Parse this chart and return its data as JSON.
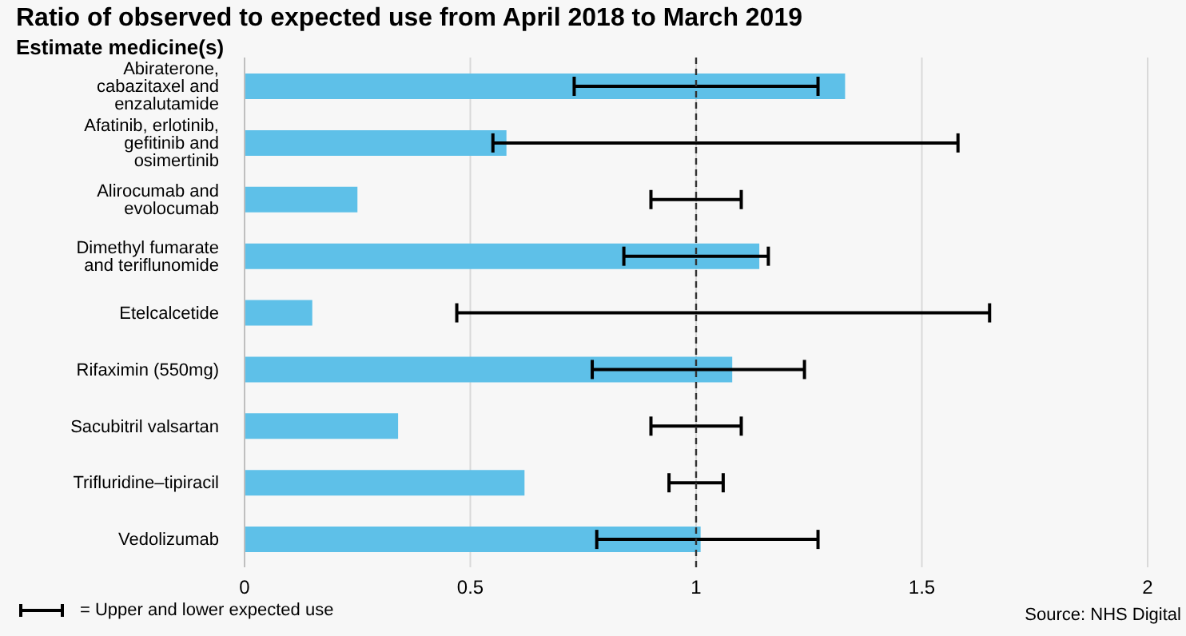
{
  "chart_data": {
    "type": "bar",
    "orientation": "horizontal",
    "title": "Ratio of observed to expected use from April 2018 to March 2019",
    "ylabel": "Estimate medicine(s)",
    "categories": [
      "Abiraterone, cabazitaxel and enzalutamide",
      "Afatinib, erlotinib, gefitinib and osimertinib",
      "Alirocumab and evolocumab",
      "Dimethyl fumarate and teriflunomide",
      "Etelcalcetide",
      "Rifaximin (550mg)",
      "Sacubitril valsartan",
      "Trifluridine–tipiracil",
      "Vedolizumab"
    ],
    "values": [
      1.33,
      0.58,
      0.25,
      1.14,
      0.15,
      1.08,
      0.34,
      0.62,
      1.01
    ],
    "errors": [
      [
        0.73,
        1.27
      ],
      [
        0.55,
        1.58
      ],
      [
        0.9,
        1.1
      ],
      [
        0.84,
        1.16
      ],
      [
        0.47,
        1.65
      ],
      [
        0.77,
        1.24
      ],
      [
        0.9,
        1.1
      ],
      [
        0.94,
        1.06
      ],
      [
        0.78,
        1.27
      ]
    ],
    "color": "#5ec0e8",
    "xlim": [
      0,
      2
    ],
    "xticks": [
      0,
      0.5,
      1,
      1.5,
      2
    ],
    "grid": "x",
    "ref_lines": [
      {
        "axis": "x",
        "value": 1,
        "color": "#333333",
        "line_style": "dashed"
      }
    ],
    "annotations": [
      "= Upper and lower expected use",
      "Source: NHS Digital"
    ]
  }
}
